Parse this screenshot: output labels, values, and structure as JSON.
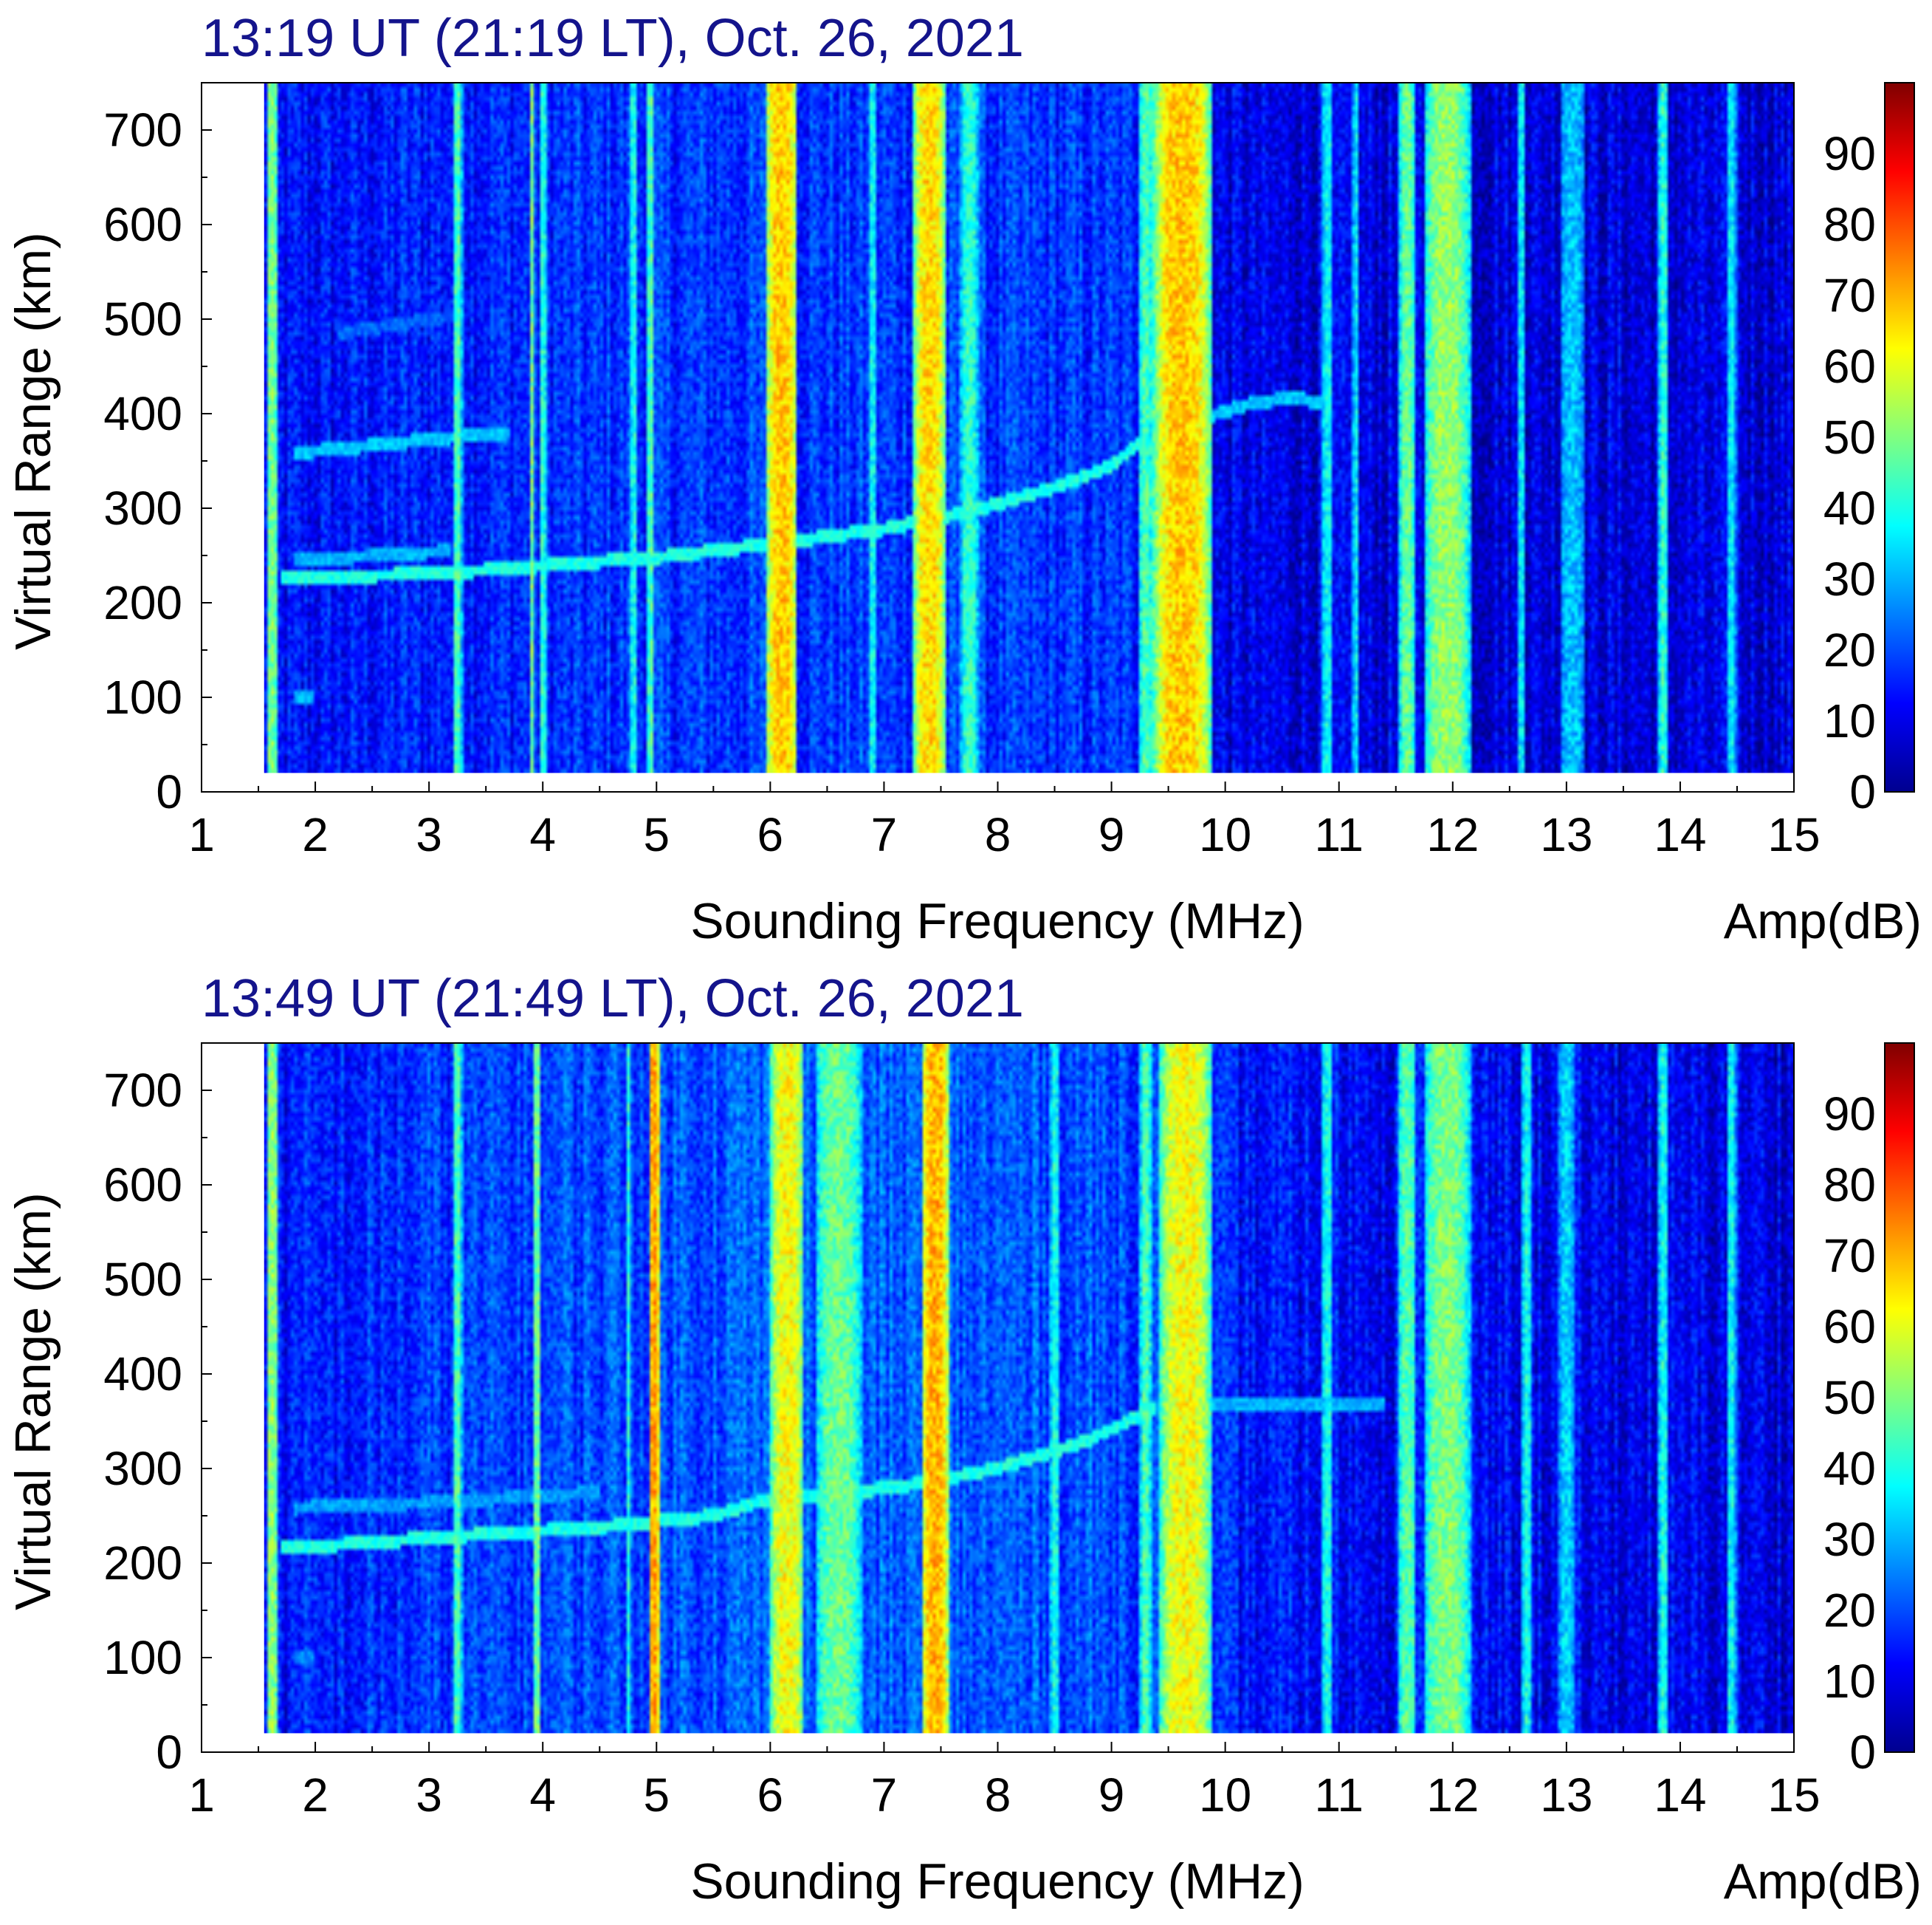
{
  "chart_data": [
    {
      "type": "heatmap",
      "title": "13:19 UT (21:19 LT), Oct. 26, 2021",
      "xlabel": "Sounding Frequency (MHz)",
      "ylabel": "Virtual Range (km)",
      "colorbar_label": "Amp(dB)",
      "xlim": [
        1,
        15
      ],
      "ylim": [
        0,
        750
      ],
      "zlim": [
        0,
        100
      ],
      "data_range_km": [
        20,
        750
      ],
      "x_ticks": [
        1,
        2,
        3,
        4,
        5,
        6,
        7,
        8,
        9,
        10,
        11,
        12,
        13,
        14,
        15
      ],
      "y_ticks": [
        0,
        100,
        200,
        300,
        400,
        500,
        600,
        700
      ],
      "colorbar_ticks": [
        0,
        10,
        20,
        30,
        40,
        50,
        60,
        70,
        80,
        90
      ],
      "background_dB": [
        [
          1.5,
          12
        ],
        [
          3.2,
          16
        ],
        [
          5.9,
          18
        ],
        [
          9.1,
          17
        ],
        [
          10.05,
          10
        ],
        [
          15,
          9
        ]
      ],
      "interference_bands": [
        {
          "f": 1.62,
          "w": 0.1,
          "dB": 50
        },
        {
          "f": 3.25,
          "w": 0.08,
          "dB": 45
        },
        {
          "f": 3.9,
          "w": 0.05,
          "dB": 50
        },
        {
          "f": 4.0,
          "w": 0.06,
          "dB": 42
        },
        {
          "f": 4.8,
          "w": 0.06,
          "dB": 40
        },
        {
          "f": 4.95,
          "w": 0.07,
          "dB": 45
        },
        {
          "f": 6.1,
          "w": 0.28,
          "dB": 68
        },
        {
          "f": 6.9,
          "w": 0.05,
          "dB": 40
        },
        {
          "f": 7.4,
          "w": 0.28,
          "dB": 66
        },
        {
          "f": 7.75,
          "w": 0.16,
          "dB": 42
        },
        {
          "f": 9.3,
          "w": 0.12,
          "dB": 45
        },
        {
          "f": 9.62,
          "w": 0.5,
          "dB": 68
        },
        {
          "f": 10.9,
          "w": 0.1,
          "dB": 38
        },
        {
          "f": 11.15,
          "w": 0.06,
          "dB": 36
        },
        {
          "f": 11.6,
          "w": 0.14,
          "dB": 48
        },
        {
          "f": 11.95,
          "w": 0.4,
          "dB": 52
        },
        {
          "f": 12.6,
          "w": 0.08,
          "dB": 36
        },
        {
          "f": 13.05,
          "w": 0.22,
          "dB": 32
        },
        {
          "f": 13.85,
          "w": 0.08,
          "dB": 42
        },
        {
          "f": 14.45,
          "w": 0.08,
          "dB": 36
        }
      ],
      "echo_traces": [
        {
          "name": "F-layer O-trace",
          "dB": 40,
          "points": [
            [
              1.7,
              225
            ],
            [
              3.2,
              232
            ],
            [
              5.0,
              248
            ],
            [
              6.0,
              262
            ],
            [
              7.0,
              278
            ],
            [
              7.8,
              298
            ],
            [
              8.5,
              322
            ],
            [
              9.0,
              345
            ],
            [
              9.3,
              375
            ]
          ]
        },
        {
          "name": "F-layer upper branch",
          "dB": 32,
          "points": [
            [
              9.3,
              375
            ],
            [
              9.8,
              395
            ],
            [
              10.2,
              410
            ],
            [
              10.6,
              418
            ],
            [
              10.9,
              408
            ]
          ]
        },
        {
          "name": "weak trace",
          "dB": 30,
          "points": [
            [
              1.8,
              245
            ],
            [
              2.6,
              250
            ],
            [
              3.2,
              255
            ]
          ]
        },
        {
          "name": "multi-hop echo",
          "dB": 32,
          "points": [
            [
              1.8,
              358
            ],
            [
              3.2,
              375
            ],
            [
              3.7,
              380
            ]
          ]
        },
        {
          "name": "multi-hop echo 2",
          "dB": 22,
          "points": [
            [
              2.2,
              485
            ],
            [
              3.3,
              505
            ]
          ]
        },
        {
          "name": "E-layer echo",
          "dB": 30,
          "points": [
            [
              1.8,
              102
            ],
            [
              2.0,
              102
            ]
          ]
        }
      ]
    },
    {
      "type": "heatmap",
      "title": "13:49 UT (21:49 LT), Oct. 26, 2021",
      "xlabel": "Sounding Frequency (MHz)",
      "ylabel": "Virtual Range (km)",
      "colorbar_label": "Amp(dB)",
      "xlim": [
        1,
        15
      ],
      "ylim": [
        0,
        750
      ],
      "zlim": [
        0,
        100
      ],
      "data_range_km": [
        20,
        750
      ],
      "x_ticks": [
        1,
        2,
        3,
        4,
        5,
        6,
        7,
        8,
        9,
        10,
        11,
        12,
        13,
        14,
        15
      ],
      "y_ticks": [
        0,
        100,
        200,
        300,
        400,
        500,
        600,
        700
      ],
      "colorbar_ticks": [
        0,
        10,
        20,
        30,
        40,
        50,
        60,
        70,
        80,
        90
      ],
      "background_dB": [
        [
          1.5,
          13
        ],
        [
          3.2,
          18
        ],
        [
          5.9,
          22
        ],
        [
          9.1,
          20
        ],
        [
          10.05,
          14
        ],
        [
          15,
          10
        ]
      ],
      "interference_bands": [
        {
          "f": 1.62,
          "w": 0.1,
          "dB": 52
        },
        {
          "f": 3.25,
          "w": 0.08,
          "dB": 45
        },
        {
          "f": 3.95,
          "w": 0.08,
          "dB": 48
        },
        {
          "f": 4.75,
          "w": 0.05,
          "dB": 40
        },
        {
          "f": 4.98,
          "w": 0.1,
          "dB": 72
        },
        {
          "f": 6.15,
          "w": 0.3,
          "dB": 62
        },
        {
          "f": 6.6,
          "w": 0.4,
          "dB": 48
        },
        {
          "f": 7.45,
          "w": 0.25,
          "dB": 70
        },
        {
          "f": 8.5,
          "w": 0.08,
          "dB": 40
        },
        {
          "f": 9.3,
          "w": 0.1,
          "dB": 45
        },
        {
          "f": 9.65,
          "w": 0.45,
          "dB": 62
        },
        {
          "f": 10.9,
          "w": 0.1,
          "dB": 40
        },
        {
          "f": 11.6,
          "w": 0.16,
          "dB": 46
        },
        {
          "f": 11.95,
          "w": 0.4,
          "dB": 50
        },
        {
          "f": 12.65,
          "w": 0.08,
          "dB": 40
        },
        {
          "f": 13.0,
          "w": 0.14,
          "dB": 34
        },
        {
          "f": 13.85,
          "w": 0.08,
          "dB": 40
        },
        {
          "f": 14.45,
          "w": 0.08,
          "dB": 38
        }
      ],
      "echo_traces": [
        {
          "name": "F-layer O-trace",
          "dB": 40,
          "points": [
            [
              1.7,
              215
            ],
            [
              3.2,
              228
            ],
            [
              4.5,
              238
            ],
            [
              5.5,
              250
            ],
            [
              5.9,
              265
            ],
            [
              6.5,
              272
            ],
            [
              7.2,
              282
            ],
            [
              8.0,
              300
            ],
            [
              8.8,
              330
            ],
            [
              9.4,
              365
            ]
          ]
        },
        {
          "name": "F-layer upper branch",
          "dB": 30,
          "points": [
            [
              9.4,
              365
            ],
            [
              10.0,
              370
            ],
            [
              11.0,
              370
            ],
            [
              11.4,
              368
            ]
          ]
        },
        {
          "name": "weak trace",
          "dB": 28,
          "points": [
            [
              1.8,
              258
            ],
            [
              3.2,
              265
            ],
            [
              4.5,
              275
            ]
          ]
        },
        {
          "name": "E-layer echo",
          "dB": 26,
          "points": [
            [
              1.8,
              102
            ],
            [
              2.0,
              102
            ]
          ]
        }
      ]
    }
  ]
}
